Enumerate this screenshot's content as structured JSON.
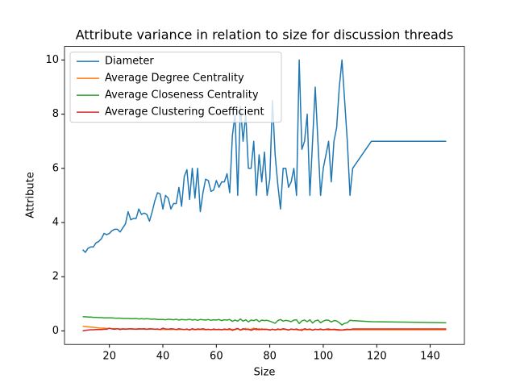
{
  "chart_data": {
    "type": "line",
    "title": "Attribute variance in relation to size for discussion threads",
    "x_label": "Size",
    "y_label": "Attribute",
    "x": [
      10,
      11,
      12,
      13,
      14,
      15,
      16,
      17,
      18,
      19,
      20,
      21,
      22,
      23,
      24,
      25,
      26,
      27,
      28,
      29,
      30,
      31,
      32,
      33,
      34,
      35,
      36,
      37,
      38,
      39,
      40,
      41,
      42,
      43,
      44,
      45,
      46,
      47,
      48,
      49,
      50,
      51,
      52,
      53,
      54,
      55,
      56,
      57,
      58,
      59,
      60,
      61,
      62,
      63,
      64,
      65,
      66,
      67,
      68,
      69,
      70,
      71,
      72,
      73,
      74,
      75,
      76,
      77,
      78,
      79,
      80,
      81,
      82,
      83,
      84,
      85,
      86,
      87,
      88,
      89,
      90,
      91,
      92,
      93,
      94,
      95,
      96,
      97,
      98,
      99,
      100,
      101,
      102,
      103,
      104,
      105,
      106,
      107,
      108,
      109,
      110,
      111,
      118,
      146
    ],
    "series": [
      {
        "name": "Diameter",
        "color": "#1f77b4",
        "values": [
          3.0,
          2.9,
          3.05,
          3.1,
          3.1,
          3.25,
          3.3,
          3.4,
          3.6,
          3.55,
          3.6,
          3.7,
          3.75,
          3.75,
          3.65,
          3.8,
          3.95,
          4.4,
          4.1,
          4.15,
          4.15,
          4.5,
          4.3,
          4.35,
          4.3,
          4.05,
          4.4,
          4.8,
          5.1,
          5.05,
          4.5,
          5.0,
          4.9,
          4.5,
          4.7,
          4.7,
          5.3,
          4.6,
          5.7,
          5.95,
          4.85,
          6.0,
          4.9,
          6.0,
          4.4,
          5.1,
          5.6,
          5.55,
          5.15,
          5.2,
          5.55,
          5.3,
          5.5,
          5.5,
          5.8,
          5.1,
          7.2,
          8.0,
          5.0,
          8.3,
          7.0,
          8.0,
          6.0,
          6.0,
          7.0,
          5.0,
          6.5,
          5.5,
          6.6,
          5.0,
          5.6,
          8.5,
          6.5,
          5.4,
          4.5,
          6.0,
          6.0,
          5.3,
          5.5,
          6.0,
          5.0,
          10.0,
          6.7,
          7.0,
          8.0,
          5.0,
          7.0,
          9.0,
          7.0,
          5.0,
          6.0,
          6.5,
          7.0,
          5.5,
          7.0,
          7.5,
          9.0,
          10.0,
          8.5,
          7.0,
          5.0,
          6.0,
          7.0,
          7.0
        ]
      },
      {
        "name": "Average Degree Centrality",
        "color": "#ff7f0e",
        "values": [
          0.17,
          0.16,
          0.15,
          0.14,
          0.13,
          0.12,
          0.11,
          0.1,
          0.1,
          0.09,
          0.09,
          0.08,
          0.08,
          0.08,
          0.07,
          0.08,
          0.07,
          0.07,
          0.07,
          0.06,
          0.07,
          0.06,
          0.07,
          0.06,
          0.06,
          0.06,
          0.07,
          0.06,
          0.06,
          0.05,
          0.06,
          0.05,
          0.06,
          0.05,
          0.06,
          0.05,
          0.05,
          0.06,
          0.05,
          0.05,
          0.05,
          0.06,
          0.04,
          0.05,
          0.05,
          0.05,
          0.04,
          0.05,
          0.05,
          0.04,
          0.05,
          0.04,
          0.05,
          0.04,
          0.05,
          0.04,
          0.06,
          0.04,
          0.08,
          0.03,
          0.05,
          0.09,
          0.04,
          0.06,
          0.1,
          0.03,
          0.08,
          0.04,
          0.07,
          0.05,
          0.04,
          0.06,
          0.03,
          0.05,
          0.04,
          0.06,
          0.05,
          0.04,
          0.06,
          0.05,
          0.04,
          0.03,
          0.06,
          0.05,
          0.04,
          0.05,
          0.03,
          0.06,
          0.04,
          0.05,
          0.04,
          0.05,
          0.03,
          0.05,
          0.04,
          0.03,
          0.02,
          0.03,
          0.03,
          0.04,
          0.04,
          0.04,
          0.04,
          0.04
        ]
      },
      {
        "name": "Average Closeness Centrality",
        "color": "#2ca02c",
        "values": [
          0.52,
          0.52,
          0.51,
          0.51,
          0.5,
          0.5,
          0.49,
          0.49,
          0.48,
          0.48,
          0.48,
          0.48,
          0.47,
          0.47,
          0.47,
          0.46,
          0.46,
          0.46,
          0.45,
          0.45,
          0.46,
          0.44,
          0.45,
          0.44,
          0.45,
          0.44,
          0.43,
          0.44,
          0.42,
          0.42,
          0.42,
          0.41,
          0.43,
          0.42,
          0.41,
          0.43,
          0.4,
          0.42,
          0.41,
          0.41,
          0.43,
          0.4,
          0.42,
          0.39,
          0.42,
          0.41,
          0.4,
          0.42,
          0.39,
          0.41,
          0.4,
          0.42,
          0.38,
          0.41,
          0.4,
          0.42,
          0.35,
          0.4,
          0.36,
          0.44,
          0.36,
          0.41,
          0.33,
          0.4,
          0.38,
          0.42,
          0.34,
          0.4,
          0.38,
          0.39,
          0.36,
          0.32,
          0.28,
          0.38,
          0.42,
          0.36,
          0.39,
          0.37,
          0.34,
          0.4,
          0.41,
          0.27,
          0.37,
          0.4,
          0.34,
          0.41,
          0.29,
          0.37,
          0.4,
          0.3,
          0.36,
          0.4,
          0.39,
          0.33,
          0.38,
          0.37,
          0.3,
          0.22,
          0.28,
          0.3,
          0.39,
          0.38,
          0.34,
          0.3
        ]
      },
      {
        "name": "Average Clustering Coefficient",
        "color": "#d62728",
        "values": [
          0.0,
          0.02,
          0.03,
          0.04,
          0.04,
          0.05,
          0.05,
          0.05,
          0.06,
          0.06,
          0.1,
          0.07,
          0.06,
          0.08,
          0.05,
          0.07,
          0.06,
          0.07,
          0.08,
          0.07,
          0.06,
          0.08,
          0.07,
          0.08,
          0.06,
          0.08,
          0.07,
          0.06,
          0.07,
          0.05,
          0.1,
          0.07,
          0.06,
          0.08,
          0.07,
          0.05,
          0.08,
          0.06,
          0.05,
          0.07,
          0.03,
          0.08,
          0.05,
          0.07,
          0.06,
          0.08,
          0.05,
          0.06,
          0.04,
          0.07,
          0.05,
          0.06,
          0.04,
          0.07,
          0.05,
          0.08,
          0.02,
          0.06,
          0.09,
          0.03,
          0.08,
          0.05,
          0.07,
          0.02,
          0.06,
          0.08,
          0.04,
          0.07,
          0.05,
          0.06,
          0.03,
          0.06,
          0.04,
          0.07,
          0.05,
          0.08,
          0.06,
          0.03,
          0.07,
          0.05,
          0.07,
          0.04,
          0.02,
          0.08,
          0.05,
          0.07,
          0.03,
          0.06,
          0.05,
          0.07,
          0.04,
          0.06,
          0.07,
          0.05,
          0.06,
          0.05,
          0.04,
          0.03,
          0.05,
          0.06,
          0.05,
          0.07,
          0.07,
          0.07
        ]
      }
    ],
    "xlim": [
      3.2,
      152.8
    ],
    "ylim": [
      -0.5,
      10.5
    ],
    "xticks": [
      20,
      40,
      60,
      80,
      100,
      120,
      140
    ],
    "yticks": [
      0,
      2,
      4,
      6,
      8,
      10
    ],
    "legend": "upper left",
    "grid": false
  }
}
